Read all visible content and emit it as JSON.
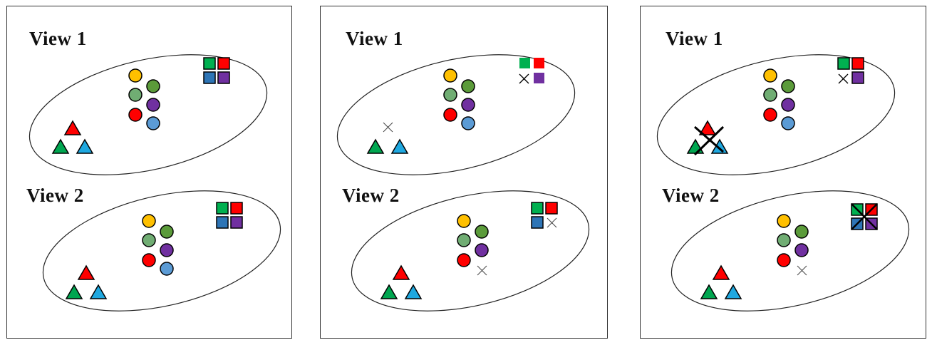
{
  "panels": [
    {
      "view1_label": "View 1",
      "view2_label": "View 2"
    },
    {
      "view1_label": "View 1",
      "view2_label": "View 2"
    },
    {
      "view1_label": "View 1",
      "view2_label": "View 2"
    }
  ],
  "colors": {
    "yellow": "#FFC000",
    "light_green": "#70AD73",
    "olive_green": "#5B9B3A",
    "red": "#FF0000",
    "purple": "#7030A0",
    "blue": "#5B9BD5",
    "triangle_green": "#00A650",
    "triangle_blue": "#1FA8E0",
    "square_green": "#00B050",
    "square_red": "#FF0000",
    "square_blue": "#2E75B6",
    "square_purple": "#7030A0",
    "outline": "#000000"
  },
  "icons": {
    "circle": "circle-icon",
    "triangle": "triangle-icon",
    "square": "square-icon",
    "missing": "cross-mark-icon",
    "discard": "big-cross-mark-icon"
  }
}
